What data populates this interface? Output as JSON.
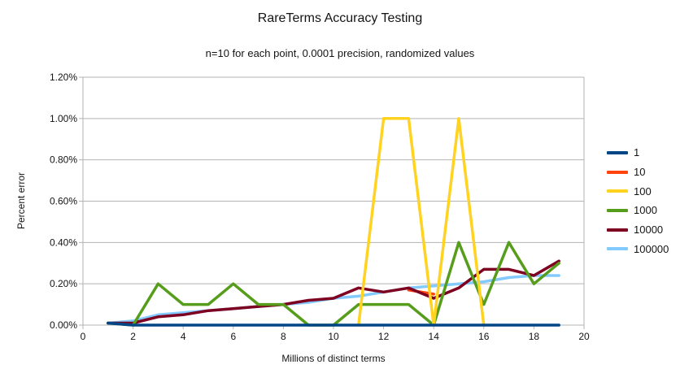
{
  "title": "RareTerms Accuracy Testing",
  "subtitle": "n=10 for each point, 0.0001 precision, randomized values",
  "axes": {
    "x_title": "Millions of distinct terms",
    "y_title": "Percent error"
  },
  "palette": {
    "grid": "#b3b3b3",
    "tick_label": "#141414",
    "background": "#ffffff"
  },
  "chart_data": {
    "type": "line",
    "title": "RareTerms Accuracy Testing",
    "subtitle": "n=10 for each point, 0.0001 precision, randomized values",
    "xlabel": "Millions of distinct terms",
    "ylabel": "Percent error",
    "xlim": [
      0,
      20
    ],
    "ylim_percent": [
      0.0,
      1.2
    ],
    "x_ticks": [
      0,
      2,
      4,
      6,
      8,
      10,
      12,
      14,
      16,
      18,
      20
    ],
    "y_tick_labels": [
      "0.00%",
      "0.20%",
      "0.40%",
      "0.60%",
      "0.80%",
      "1.00%",
      "1.20%"
    ],
    "grid": "horizontal",
    "legend_position": "right",
    "x": [
      1,
      2,
      3,
      4,
      5,
      6,
      7,
      8,
      9,
      10,
      11,
      12,
      13,
      14,
      15,
      16,
      17,
      18,
      19
    ],
    "series": [
      {
        "name": "1",
        "color": "#004586",
        "values": [
          0.01,
          0,
          0,
          0,
          0,
          0,
          0,
          0,
          0,
          0,
          0,
          0,
          0,
          0,
          0,
          0,
          0,
          0,
          0
        ]
      },
      {
        "name": "10",
        "color": "#ff420e",
        "values": [
          null,
          null,
          null,
          null,
          null,
          null,
          null,
          null,
          null,
          null,
          null,
          null,
          0.17,
          0.15,
          null,
          null,
          null,
          null,
          null
        ]
      },
      {
        "name": "100",
        "color": "#ffd320",
        "values": [
          null,
          null,
          null,
          null,
          null,
          null,
          null,
          null,
          null,
          null,
          0.0,
          1.0,
          1.0,
          0.0,
          1.0,
          0.0,
          null,
          null,
          null
        ]
      },
      {
        "name": "1000",
        "color": "#579d1c",
        "values": [
          0.01,
          0,
          0.2,
          0.1,
          0.1,
          0.2,
          0.1,
          0.1,
          0,
          0,
          0.1,
          0.1,
          0.1,
          0,
          0.4,
          0.1,
          0.4,
          0.2,
          0.3
        ]
      },
      {
        "name": "10000",
        "color": "#7e0021",
        "values": [
          0.01,
          0.01,
          0.04,
          0.05,
          0.07,
          0.08,
          0.09,
          0.1,
          0.12,
          0.13,
          0.18,
          0.16,
          0.18,
          0.13,
          0.18,
          0.27,
          0.27,
          0.24,
          0.31
        ]
      },
      {
        "name": "100000",
        "color": "#83caff",
        "values": [
          0.01,
          0.02,
          0.05,
          0.06,
          0.07,
          0.08,
          0.09,
          0.1,
          0.11,
          0.13,
          0.14,
          0.16,
          0.18,
          0.19,
          0.2,
          0.21,
          0.23,
          0.24,
          0.24
        ]
      }
    ],
    "draw_order": [
      "100000",
      "10",
      "10000",
      "1000",
      "100",
      "1"
    ]
  }
}
